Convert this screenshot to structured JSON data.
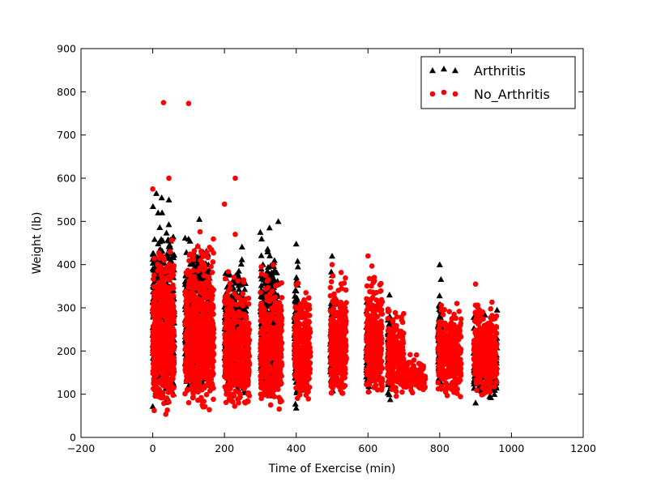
{
  "chart_data": {
    "type": "scatter",
    "title": "",
    "xlabel": "Time of Exercise (min)",
    "ylabel": "Weight (lb)",
    "xlim": [
      -200,
      1200
    ],
    "ylim": [
      0,
      900
    ],
    "xticks": [
      "−200",
      "0",
      "200",
      "400",
      "600",
      "800",
      "1000",
      "1200"
    ],
    "yticks": [
      "0",
      "100",
      "200",
      "300",
      "400",
      "500",
      "600",
      "700",
      "800",
      "900"
    ],
    "grid": false,
    "legend_position": "top-right",
    "series": [
      {
        "name": "Arthritis",
        "marker": "triangle",
        "color": "#000000",
        "clusters": [
          {
            "x": [
              0,
              60
            ],
            "y": [
              70,
              560
            ]
          },
          {
            "x": [
              90,
              160
            ],
            "y": [
              90,
              505
            ]
          },
          {
            "x": [
              200,
              260
            ],
            "y": [
              90,
              460
            ]
          },
          {
            "x": [
              300,
              350
            ],
            "y": [
              90,
              500
            ]
          },
          {
            "x": [
              395,
              405
            ],
            "y": [
              70,
              450
            ]
          },
          {
            "x": [
              495,
              505
            ],
            "y": [
              95,
              420
            ]
          },
          {
            "x": [
              595,
              605
            ],
            "y": [
              90,
              350
            ]
          },
          {
            "x": [
              655,
              665
            ],
            "y": [
              80,
              330
            ]
          },
          {
            "x": [
              795,
              805
            ],
            "y": [
              100,
              400
            ]
          },
          {
            "x": [
              895,
              960
            ],
            "y": [
              80,
              295
            ]
          }
        ],
        "points": [
          {
            "x": 10,
            "y": 565
          },
          {
            "x": 25,
            "y": 555
          },
          {
            "x": 45,
            "y": 550
          },
          {
            "x": 15,
            "y": 520
          },
          {
            "x": 130,
            "y": 505
          },
          {
            "x": 350,
            "y": 500
          },
          {
            "x": 400,
            "y": 448
          },
          {
            "x": 300,
            "y": 475
          },
          {
            "x": 500,
            "y": 420
          },
          {
            "x": 800,
            "y": 400
          },
          {
            "x": 660,
            "y": 330
          },
          {
            "x": 900,
            "y": 80
          },
          {
            "x": 400,
            "y": 68
          },
          {
            "x": 0,
            "y": 72
          },
          {
            "x": 230,
            "y": 330
          },
          {
            "x": 960,
            "y": 295
          }
        ]
      },
      {
        "name": "No_Arthritis",
        "marker": "circle",
        "color": "#ff0000",
        "clusters": [
          {
            "x": [
              0,
              60
            ],
            "y": [
              50,
              500
            ]
          },
          {
            "x": [
              90,
              170
            ],
            "y": [
              55,
              510
            ]
          },
          {
            "x": [
              200,
              270
            ],
            "y": [
              60,
              420
            ]
          },
          {
            "x": [
              300,
              360
            ],
            "y": [
              60,
              420
            ]
          },
          {
            "x": [
              395,
              440
            ],
            "y": [
              75,
              400
            ]
          },
          {
            "x": [
              495,
              540
            ],
            "y": [
              80,
              420
            ]
          },
          {
            "x": [
              595,
              640
            ],
            "y": [
              85,
              420
            ]
          },
          {
            "x": [
              655,
              700
            ],
            "y": [
              90,
              330
            ]
          },
          {
            "x": [
              700,
              760
            ],
            "y": [
              100,
              200
            ]
          },
          {
            "x": [
              795,
              860
            ],
            "y": [
              85,
              350
            ]
          },
          {
            "x": [
              895,
              960
            ],
            "y": [
              90,
              355
            ]
          }
        ],
        "points": [
          {
            "x": 30,
            "y": 775
          },
          {
            "x": 100,
            "y": 773
          },
          {
            "x": 45,
            "y": 600
          },
          {
            "x": 230,
            "y": 600
          },
          {
            "x": 0,
            "y": 575
          },
          {
            "x": 200,
            "y": 540
          },
          {
            "x": 230,
            "y": 470
          },
          {
            "x": 600,
            "y": 420
          },
          {
            "x": 500,
            "y": 400
          },
          {
            "x": 840,
            "y": 285
          },
          {
            "x": 900,
            "y": 355
          }
        ]
      }
    ]
  }
}
